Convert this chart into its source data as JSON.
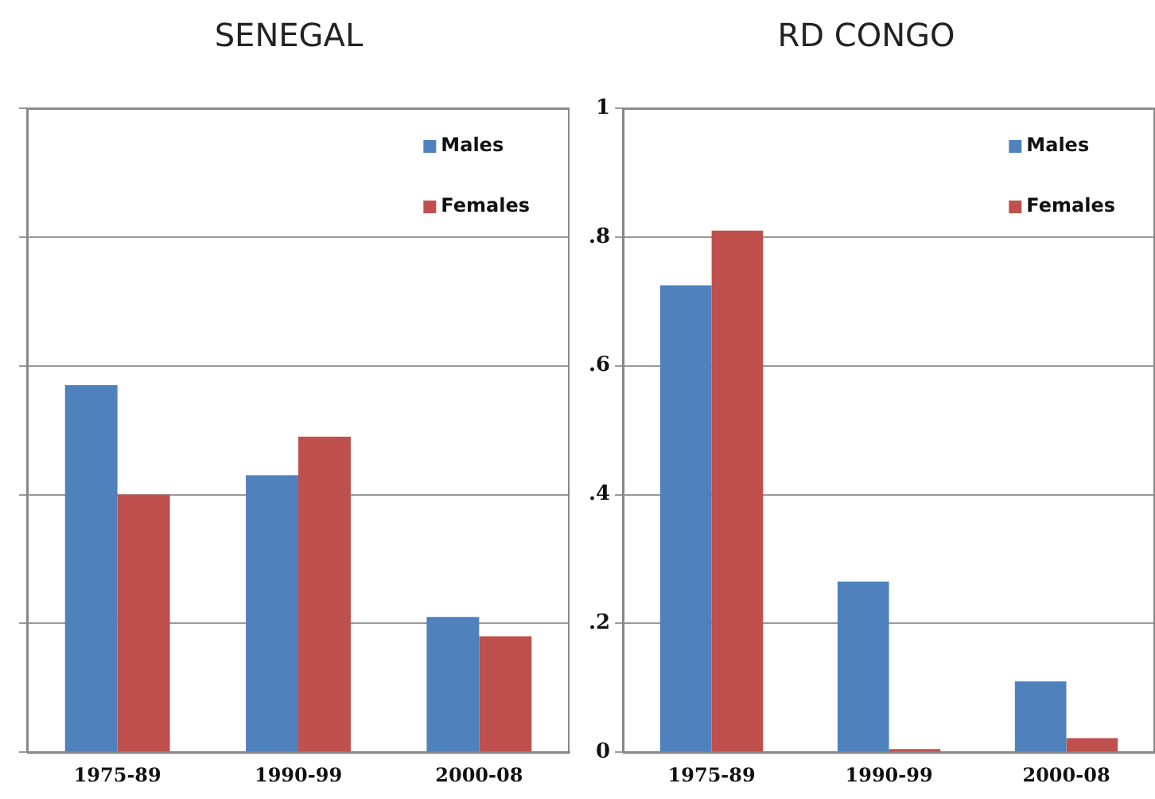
{
  "chart_data": [
    {
      "type": "bar",
      "title": "SENEGAL",
      "categories": [
        "1975-89",
        "1990-99",
        "2000-08"
      ],
      "series": [
        {
          "name": "Males",
          "color": "#4f81bd",
          "values": [
            0.57,
            0.43,
            0.21
          ]
        },
        {
          "name": "Females",
          "color": "#c0504d",
          "values": [
            0.4,
            0.49,
            0.18
          ]
        }
      ],
      "ylim": [
        0,
        1
      ],
      "yticks": [
        0,
        0.2,
        0.4,
        0.6,
        0.8,
        1
      ],
      "tick_labels": "x",
      "grid": "y",
      "legend": "top right"
    },
    {
      "type": "bar",
      "title": "RD CONGO",
      "categories": [
        "1975-89",
        "1990-99",
        "2000-08"
      ],
      "series": [
        {
          "name": "Males",
          "color": "#4f81bd",
          "values": [
            0.725,
            0.265,
            0.11
          ]
        },
        {
          "name": "Females",
          "color": "#c0504d",
          "values": [
            0.81,
            0.005,
            0.022
          ]
        }
      ],
      "ylim": [
        0,
        1
      ],
      "yticks": [
        {
          "value": 0,
          "label": "0"
        },
        {
          "value": 0.2,
          "label": ".2"
        },
        {
          "value": 0.4,
          "label": ".4"
        },
        {
          "value": 0.6,
          "label": ".6"
        },
        {
          "value": 0.8,
          "label": ".8"
        },
        {
          "value": 1,
          "label": "1"
        }
      ],
      "grid": "y",
      "legend": "top right"
    }
  ]
}
